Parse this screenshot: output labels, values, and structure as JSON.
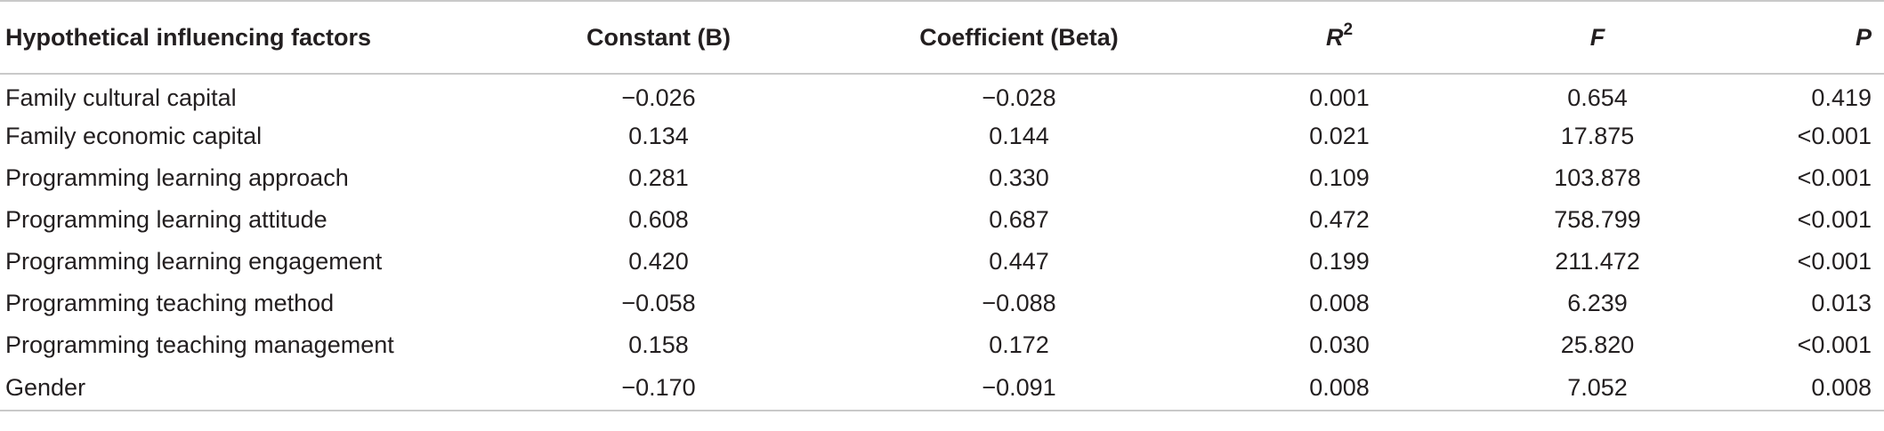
{
  "table": {
    "headers": {
      "factor": "Hypothetical influencing factors",
      "constant": "Constant (B)",
      "coefficient": "Coefficient (Beta)",
      "r2_base": "R",
      "r2_sup": "2",
      "f": "F",
      "p": "P"
    },
    "rows": [
      {
        "factor": "Family cultural capital",
        "constant": "−0.026",
        "coefficient": "−0.028",
        "r2": "0.001",
        "f": "0.654",
        "p": "0.419"
      },
      {
        "factor": "Family economic capital",
        "constant": "0.134",
        "coefficient": "0.144",
        "r2": "0.021",
        "f": "17.875",
        "p": "<0.001"
      },
      {
        "factor": "Programming learning approach",
        "constant": "0.281",
        "coefficient": "0.330",
        "r2": "0.109",
        "f": "103.878",
        "p": "<0.001"
      },
      {
        "factor": "Programming learning attitude",
        "constant": "0.608",
        "coefficient": "0.687",
        "r2": "0.472",
        "f": "758.799",
        "p": "<0.001"
      },
      {
        "factor": "Programming learning engagement",
        "constant": "0.420",
        "coefficient": "0.447",
        "r2": "0.199",
        "f": "211.472",
        "p": "<0.001"
      },
      {
        "factor": "Programming teaching method",
        "constant": "−0.058",
        "coefficient": "−0.088",
        "r2": "0.008",
        "f": "6.239",
        "p": "0.013"
      },
      {
        "factor": "Programming teaching management",
        "constant": "0.158",
        "coefficient": "0.172",
        "r2": "0.030",
        "f": "25.820",
        "p": "<0.001"
      },
      {
        "factor": "Gender",
        "constant": "−0.170",
        "coefficient": "−0.091",
        "r2": "0.008",
        "f": "7.052",
        "p": "0.008"
      }
    ]
  }
}
